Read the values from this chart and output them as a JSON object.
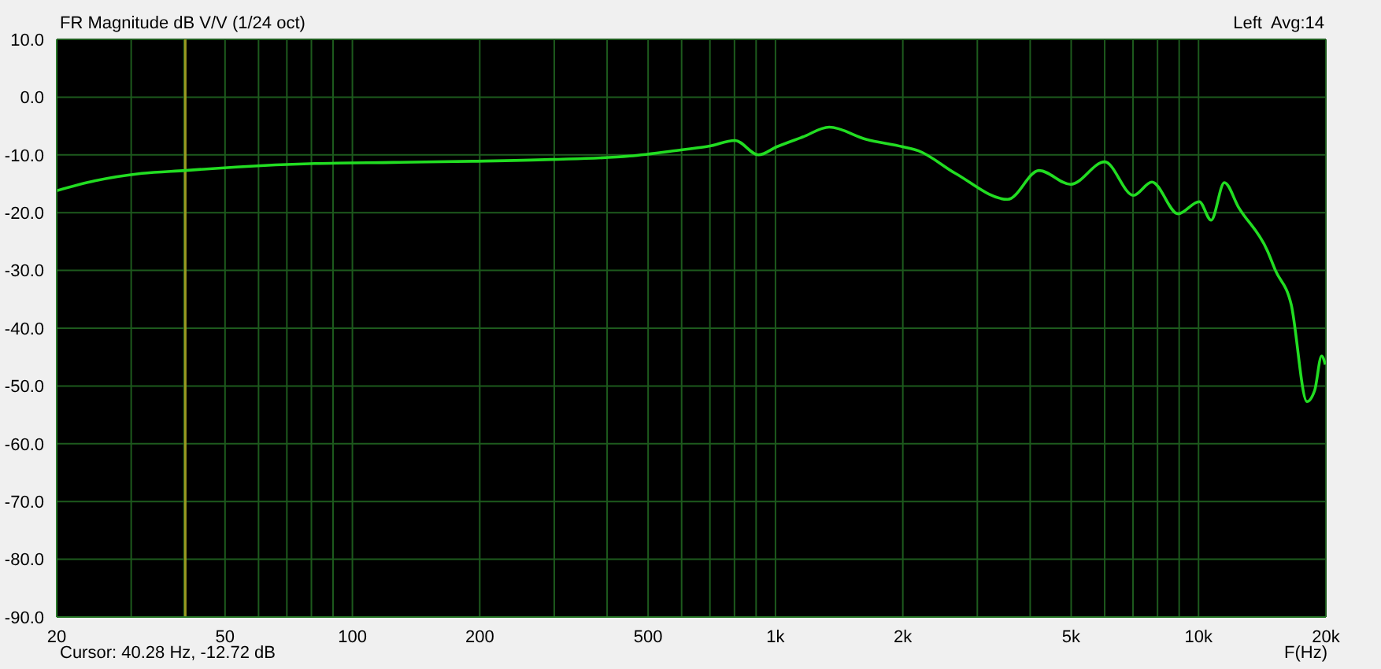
{
  "chart_data": {
    "type": "line",
    "title": "FR Magnitude dB V/V (1/24 oct)",
    "xlabel": "F(Hz)",
    "annotations": [
      "Left  Avg:14",
      "Cursor: 40.28 Hz, -12.72 dB"
    ],
    "log": "x",
    "grid": true,
    "marker": "none",
    "line_style": "solid",
    "x": [
      20,
      24.6,
      31.8,
      40.28,
      53.1,
      81.5,
      125,
      192,
      294,
      452,
      602,
      696,
      802,
      912,
      1007,
      1160,
      1340,
      1637,
      2000,
      2178,
      2662,
      3540,
      4200,
      4986,
      6000,
      7016,
      7760,
      8950,
      10040,
      10710,
      11510,
      12440,
      14550,
      15200,
      16560,
      18040,
      18810,
      19540,
      19940
    ],
    "series": [
      {
        "color": "#22dd22",
        "values": [
          -16.2,
          -14.5,
          -13.2,
          -12.7,
          -12.1,
          -11.5,
          -11.3,
          -11.1,
          -10.8,
          -10.2,
          -9.1,
          -8.5,
          -7.5,
          -10.0,
          -8.6,
          -6.9,
          -5.2,
          -7.3,
          -8.6,
          -9.3,
          -13.2,
          -17.7,
          -12.7,
          -15.1,
          -11.2,
          -17.0,
          -14.7,
          -20.2,
          -18.1,
          -21.3,
          -14.8,
          -19.1,
          -26.6,
          -30.0,
          -35.9,
          -52.7,
          -50.8,
          -44.8,
          -46.3
        ]
      }
    ],
    "xlim": [
      20,
      20000
    ],
    "xticks": [
      20,
      {
        "value": 30,
        "label": null
      },
      {
        "value": 40,
        "label": null
      },
      50,
      {
        "value": 60,
        "label": null
      },
      {
        "value": 70,
        "label": null
      },
      {
        "value": 80,
        "label": null
      },
      {
        "value": 90,
        "label": null
      },
      100,
      200,
      {
        "value": 300,
        "label": null
      },
      {
        "value": 400,
        "label": null
      },
      500,
      {
        "value": 600,
        "label": null
      },
      {
        "value": 700,
        "label": null
      },
      {
        "value": 800,
        "label": null
      },
      {
        "value": 900,
        "label": null
      },
      {
        "value": 1000,
        "label": "1k"
      },
      {
        "value": 2000,
        "label": "2k"
      },
      {
        "value": 3000,
        "label": null
      },
      {
        "value": 4000,
        "label": null
      },
      {
        "value": 5000,
        "label": "5k"
      },
      {
        "value": 6000,
        "label": null
      },
      {
        "value": 7000,
        "label": null
      },
      {
        "value": 8000,
        "label": null
      },
      {
        "value": 9000,
        "label": null
      },
      {
        "value": 10000,
        "label": "10k"
      },
      {
        "value": 20000,
        "label": "20k"
      }
    ],
    "ylim": [
      -90,
      10
    ],
    "yticks": [
      {
        "value": -90,
        "label": "-90.0"
      },
      {
        "value": -80,
        "label": "-80.0"
      },
      {
        "value": -70,
        "label": "-70.0"
      },
      {
        "value": -60,
        "label": "-60.0"
      },
      {
        "value": -50,
        "label": "-50.0"
      },
      {
        "value": -40,
        "label": "-40.0"
      },
      {
        "value": -30,
        "label": "-30.0"
      },
      {
        "value": -20,
        "label": "-20.0"
      },
      {
        "value": -10,
        "label": "-10.0"
      },
      {
        "value": 0,
        "label": "0.0"
      },
      {
        "value": 10,
        "label": "10.0"
      }
    ],
    "ref_lines": [
      {
        "axis": "x",
        "value": 40.28,
        "color": "#9a9a20"
      }
    ]
  }
}
